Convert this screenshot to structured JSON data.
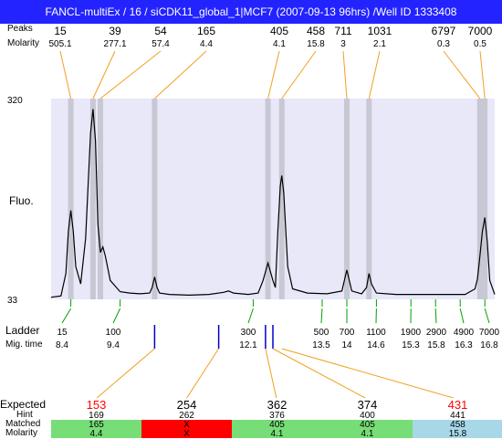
{
  "window": {
    "title": "FANCL-multiEx / 16 / siCDK11_global_1|MCF7 (2007-09-13 96hrs) /Well ID 1333408"
  },
  "top_labels": {
    "row1": "Peaks",
    "row2": "Molarity"
  },
  "peaks": [
    {
      "size": "15",
      "molarity": "505.1",
      "mig": 8.4
    },
    {
      "size": "39",
      "molarity": "277.1",
      "mig": 8.85
    },
    {
      "size": "54",
      "molarity": "57.4",
      "mig": 9.0
    },
    {
      "size": "165",
      "molarity": "4.4",
      "mig": 10.1
    },
    {
      "size": "405",
      "molarity": "4.1",
      "mig": 12.4
    },
    {
      "size": "458",
      "molarity": "15.8",
      "mig": 12.68
    },
    {
      "size": "711",
      "molarity": "3",
      "mig": 14.0
    },
    {
      "size": "1031",
      "molarity": "2.1",
      "mig": 14.45
    },
    {
      "size": "6797",
      "molarity": "0.3",
      "mig": 16.7
    },
    {
      "size": "7000",
      "molarity": "0.5",
      "mig": 16.8
    }
  ],
  "y_axis": {
    "label": "Fluo.",
    "max_label": "320",
    "min_label": "33",
    "min": 33,
    "max": 320
  },
  "chart_data": {
    "type": "line",
    "x_range": [
      8.0,
      17.0
    ],
    "y_range": [
      33,
      320
    ],
    "x": [
      8.0,
      8.2,
      8.3,
      8.35,
      8.4,
      8.45,
      8.5,
      8.6,
      8.7,
      8.8,
      8.85,
      8.9,
      8.95,
      9.0,
      9.05,
      9.1,
      9.2,
      9.4,
      9.6,
      9.8,
      10.0,
      10.05,
      10.1,
      10.15,
      10.2,
      10.4,
      10.8,
      11.2,
      11.5,
      11.6,
      11.7,
      12.0,
      12.2,
      12.3,
      12.4,
      12.5,
      12.55,
      12.6,
      12.65,
      12.68,
      12.72,
      12.8,
      12.9,
      13.2,
      13.6,
      13.9,
      13.95,
      14.0,
      14.05,
      14.1,
      14.3,
      14.4,
      14.45,
      14.5,
      14.6,
      15.0,
      15.5,
      16.0,
      16.4,
      16.6,
      16.65,
      16.7,
      16.75,
      16.8,
      16.85,
      16.9,
      17.0
    ],
    "y": [
      36,
      38,
      70,
      130,
      160,
      130,
      80,
      55,
      120,
      270,
      305,
      260,
      140,
      100,
      108,
      95,
      60,
      44,
      42,
      41,
      42,
      50,
      65,
      50,
      42,
      40,
      39,
      40,
      43,
      45,
      42,
      40,
      42,
      60,
      85,
      60,
      50,
      130,
      195,
      210,
      185,
      80,
      48,
      42,
      41,
      45,
      60,
      75,
      60,
      45,
      41,
      50,
      70,
      55,
      42,
      40,
      40,
      40,
      40,
      48,
      62,
      95,
      130,
      150,
      115,
      60,
      40
    ]
  },
  "ladder": {
    "label1": "Ladder",
    "label2": "Mig. time",
    "marks": [
      {
        "size": "15",
        "time": "8.4",
        "mig": 8.4
      },
      {
        "size": "100",
        "time": "9.4",
        "mig": 9.4
      },
      {
        "size": "300",
        "time": "12.1",
        "mig": 12.1
      },
      {
        "size": "500",
        "time": "13.5",
        "mig": 13.5
      },
      {
        "size": "700",
        "time": "14",
        "mig": 14.0
      },
      {
        "size": "1100",
        "time": "14.6",
        "mig": 14.6
      },
      {
        "size": "1900",
        "time": "15.3",
        "mig": 15.3
      },
      {
        "size": "2900",
        "time": "15.8",
        "mig": 15.8
      },
      {
        "size": "4900",
        "time": "16.3",
        "mig": 16.3
      },
      {
        "size": "7000",
        "time": "16.8",
        "mig": 16.8
      }
    ]
  },
  "expected_marks": [
    10.1,
    11.4,
    12.35,
    12.5
  ],
  "expected_table": {
    "row_labels": {
      "expected": "Expected",
      "hint": "Hint",
      "matched": "Matched",
      "molarity": "Molarity"
    },
    "columns": [
      {
        "expected": "153",
        "hint": "169",
        "matched": "165",
        "molarity": "4.4",
        "expected_color": "#ff0000",
        "fill": "#77dd77",
        "mig": 10.1
      },
      {
        "expected": "254",
        "hint": "262",
        "matched": "X",
        "molarity": "X",
        "expected_color": "#000000",
        "fill": "#ff0000",
        "mig": 11.4
      },
      {
        "expected": "362",
        "hint": "376",
        "matched": "405",
        "molarity": "4.1",
        "expected_color": "#000000",
        "fill": "#77dd77",
        "mig": 12.35
      },
      {
        "expected": "374",
        "hint": "400",
        "matched": "405",
        "molarity": "4.1",
        "expected_color": "#000000",
        "fill": "#77dd77",
        "mig": 12.5
      },
      {
        "expected": "431",
        "hint": "441",
        "matched": "458",
        "molarity": "15.8",
        "expected_color": "#ff0000",
        "fill": "#a8d8e8",
        "mig": 12.68
      }
    ]
  },
  "colors": {
    "plot_bg": "#e8e8f8",
    "band": "#c8c8d4",
    "trace": "#000000",
    "orange": "#f0a020",
    "green": "#00a000",
    "blue": "#0000cc",
    "title_bg": "#2323ff"
  }
}
